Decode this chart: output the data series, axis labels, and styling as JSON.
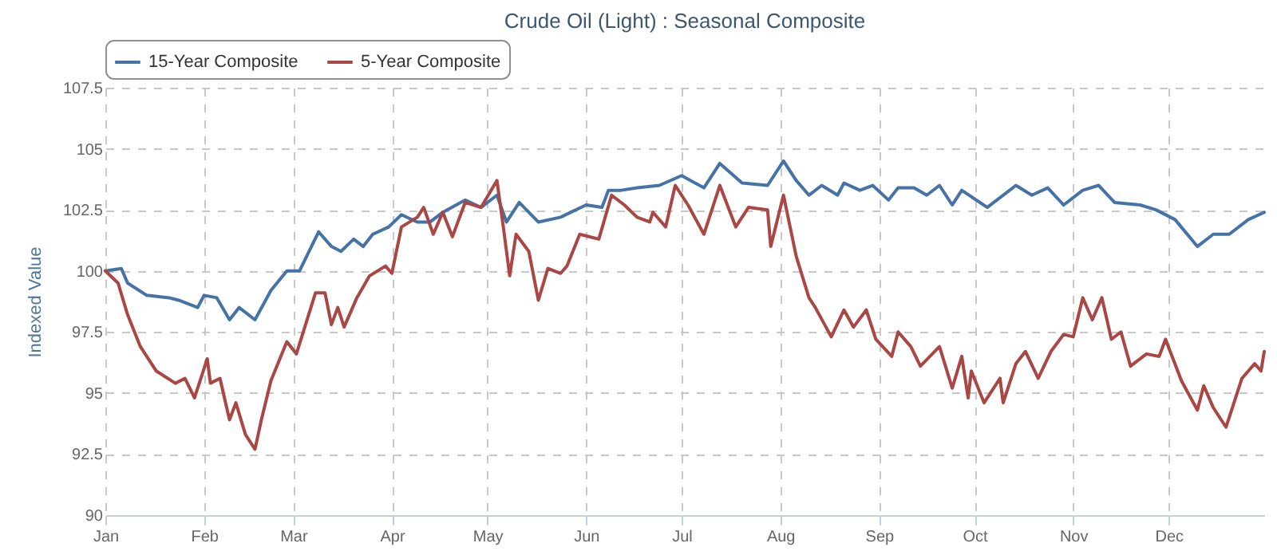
{
  "chart_data": {
    "type": "line",
    "title": "Crude Oil (Light) : Seasonal Composite",
    "ylabel": "Indexed Value",
    "xlim": [
      "--01-01",
      "--12-31"
    ],
    "xticks": [
      {
        "value": "--01-01",
        "label": "Jan"
      },
      {
        "value": "--02-01",
        "label": "Feb"
      },
      {
        "value": "--03-01",
        "label": "Mar"
      },
      {
        "value": "--04-01",
        "label": "Apr"
      },
      {
        "value": "--05-01",
        "label": "May"
      },
      {
        "value": "--06-01",
        "label": "Jun"
      },
      {
        "value": "--07-01",
        "label": "Jul"
      },
      {
        "value": "--08-01",
        "label": "Aug"
      },
      {
        "value": "--09-01",
        "label": "Sep"
      },
      {
        "value": "--10-01",
        "label": "Oct"
      },
      {
        "value": "--11-01",
        "label": "Nov"
      },
      {
        "value": "--12-01",
        "label": "Dec"
      }
    ],
    "ylim": [
      90,
      107.5
    ],
    "yticks": [
      90,
      92.5,
      95,
      97.5,
      100,
      102.5,
      105,
      107.5
    ],
    "grid": true,
    "legend": "top",
    "line_style": "solid",
    "series": [
      {
        "name": "15-Year Composite",
        "color": "#4572a7",
        "x": [
          "--01-01",
          "--01-06",
          "--01-08",
          "--01-14",
          "--01-21",
          "--01-24",
          "--01-30",
          "--02-01",
          "--02-05",
          "--02-09",
          "--02-12",
          "--02-17",
          "--02-22",
          "--02-27",
          "--03-03",
          "--03-09",
          "--03-13",
          "--03-16",
          "--03-20",
          "--03-23",
          "--03-26",
          "--03-31",
          "--04-04",
          "--04-09",
          "--04-13",
          "--04-17",
          "--04-24",
          "--04-29",
          "--05-04",
          "--05-07",
          "--05-11",
          "--05-17",
          "--05-24",
          "--06-01",
          "--06-06",
          "--06-08",
          "--06-12",
          "--06-17",
          "--06-24",
          "--07-01",
          "--07-08",
          "--07-13",
          "--07-20",
          "--07-28",
          "--08-02",
          "--08-06",
          "--08-10",
          "--08-14",
          "--08-19",
          "--08-21",
          "--08-26",
          "--08-30",
          "--09-04",
          "--09-07",
          "--09-12",
          "--09-16",
          "--09-20",
          "--09-24",
          "--09-27",
          "--10-05",
          "--10-14",
          "--10-19",
          "--10-24",
          "--10-29",
          "--11-04",
          "--11-09",
          "--11-14",
          "--11-22",
          "--11-27",
          "--12-03",
          "--12-10",
          "--12-15",
          "--12-20",
          "--12-26",
          "--12-31"
        ],
        "values": [
          100,
          100.1,
          99.5,
          99.0,
          98.9,
          98.8,
          98.5,
          99.0,
          98.9,
          98.0,
          98.5,
          98.0,
          99.2,
          100.0,
          100.0,
          101.6,
          101.0,
          100.8,
          101.3,
          101.0,
          101.5,
          101.8,
          102.3,
          102.0,
          102.0,
          102.4,
          102.9,
          102.6,
          103.1,
          102.0,
          102.8,
          102.0,
          102.2,
          102.7,
          102.6,
          103.3,
          103.3,
          103.4,
          103.5,
          103.9,
          103.4,
          104.4,
          103.6,
          103.5,
          104.5,
          103.7,
          103.1,
          103.5,
          103.1,
          103.6,
          103.3,
          103.5,
          102.9,
          103.4,
          103.4,
          103.1,
          103.5,
          102.7,
          103.3,
          102.6,
          103.5,
          103.1,
          103.4,
          102.7,
          103.3,
          103.5,
          102.8,
          102.7,
          102.5,
          102.1,
          101.0,
          101.5,
          101.5,
          102.1,
          102.4
        ]
      },
      {
        "name": "5-Year Composite",
        "color": "#aa4643",
        "x": [
          "--01-01",
          "--01-05",
          "--01-08",
          "--01-12",
          "--01-17",
          "--01-23",
          "--01-26",
          "--01-29",
          "--02-02",
          "--02-03",
          "--02-06",
          "--02-09",
          "--02-11",
          "--02-14",
          "--02-17",
          "--02-19",
          "--02-22",
          "--02-27",
          "--03-02",
          "--03-08",
          "--03-11",
          "--03-13",
          "--03-15",
          "--03-17",
          "--03-21",
          "--03-25",
          "--03-30",
          "--04-01",
          "--04-04",
          "--04-09",
          "--04-11",
          "--04-14",
          "--04-17",
          "--04-20",
          "--04-24",
          "--04-29",
          "--05-04",
          "--05-06",
          "--05-08",
          "--05-10",
          "--05-14",
          "--05-17",
          "--05-20",
          "--05-24",
          "--05-26",
          "--05-30",
          "--06-05",
          "--06-09",
          "--06-13",
          "--06-17",
          "--06-21",
          "--06-22",
          "--06-26",
          "--06-29",
          "--07-03",
          "--07-08",
          "--07-13",
          "--07-18",
          "--07-22",
          "--07-28",
          "--07-29",
          "--08-02",
          "--08-06",
          "--08-10",
          "--08-12",
          "--08-17",
          "--08-21",
          "--08-24",
          "--08-28",
          "--08-31",
          "--09-05",
          "--09-07",
          "--09-11",
          "--09-14",
          "--09-20",
          "--09-24",
          "--09-27",
          "--09-29",
          "--09-30",
          "--10-04",
          "--10-09",
          "--10-10",
          "--10-14",
          "--10-17",
          "--10-21",
          "--10-25",
          "--10-29",
          "--11-01",
          "--11-04",
          "--11-07",
          "--11-10",
          "--11-13",
          "--11-16",
          "--11-19",
          "--11-24",
          "--11-28",
          "--11-30",
          "--12-05",
          "--12-10",
          "--12-12",
          "--12-15",
          "--12-19",
          "--12-24",
          "--12-28",
          "--12-30",
          "--12-31"
        ],
        "values": [
          100,
          99.5,
          98.2,
          96.9,
          95.9,
          95.4,
          95.6,
          94.8,
          96.4,
          95.4,
          95.6,
          93.9,
          94.6,
          93.3,
          92.7,
          93.9,
          95.5,
          97.1,
          96.6,
          99.1,
          99.1,
          97.8,
          98.5,
          97.7,
          98.9,
          99.8,
          100.2,
          99.9,
          101.8,
          102.2,
          102.6,
          101.5,
          102.4,
          101.4,
          102.8,
          102.6,
          103.7,
          101.8,
          99.8,
          101.5,
          100.8,
          98.8,
          100.1,
          99.9,
          100.2,
          101.5,
          101.3,
          103.1,
          102.7,
          102.2,
          102.0,
          102.4,
          101.8,
          103.5,
          102.7,
          101.5,
          103.5,
          101.8,
          102.6,
          102.5,
          101.0,
          103.1,
          100.6,
          98.9,
          98.5,
          97.3,
          98.4,
          97.7,
          98.4,
          97.2,
          96.5,
          97.5,
          96.9,
          96.1,
          96.9,
          95.2,
          96.5,
          94.8,
          95.9,
          94.6,
          95.6,
          94.6,
          96.2,
          96.7,
          95.6,
          96.7,
          97.4,
          97.3,
          98.9,
          98.0,
          98.9,
          97.2,
          97.5,
          96.1,
          96.6,
          96.5,
          97.2,
          95.5,
          94.3,
          95.3,
          94.4,
          93.6,
          95.6,
          96.2,
          95.9,
          96.7
        ]
      }
    ]
  }
}
